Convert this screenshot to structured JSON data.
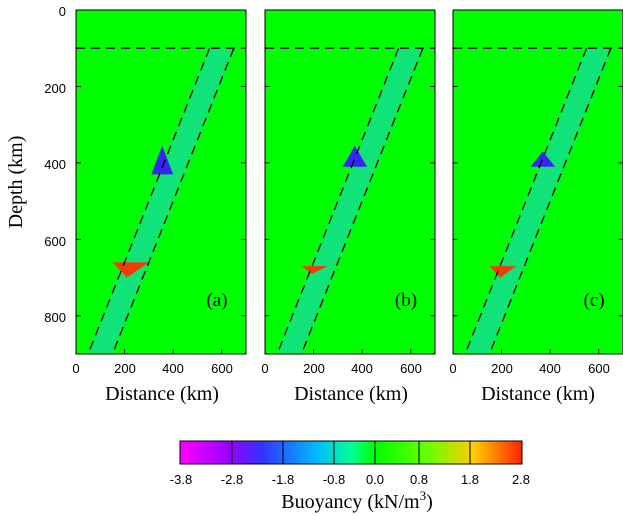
{
  "chart_data": [
    {
      "type": "heatmap",
      "panel_label": "(a)",
      "xlabel": "Distance (km)",
      "ylabel": "Depth (km)",
      "xlim": [
        0,
        700
      ],
      "ylim": [
        900,
        0
      ],
      "xticks": [
        "0",
        "200",
        "400",
        "600"
      ],
      "yticks": [
        "0",
        "200",
        "400",
        "600",
        "800"
      ],
      "background_value": 0.0,
      "reference_depth_line": 100,
      "slab_boundaries": [
        {
          "top": [
            550,
            100
          ],
          "bottom": [
            50,
            900
          ]
        },
        {
          "top": [
            650,
            100
          ],
          "bottom": [
            150,
            900
          ]
        }
      ],
      "slab_anomaly_value": -0.8,
      "anomalies": [
        {
          "feature": "negative buoyancy near 410 km",
          "value": -2.8,
          "distance_range": [
            310,
            400
          ],
          "depth_range": [
            355,
            430
          ]
        },
        {
          "feature": "positive buoyancy near 660 km",
          "value": 2.8,
          "distance_range": [
            150,
            300
          ],
          "depth_range": [
            660,
            700
          ]
        }
      ]
    },
    {
      "type": "heatmap",
      "panel_label": "(b)",
      "xlabel": "Distance (km)",
      "xlim": [
        0,
        700
      ],
      "ylim": [
        900,
        0
      ],
      "xticks": [
        "0",
        "200",
        "400",
        "600"
      ],
      "background_value": 0.0,
      "reference_depth_line": 100,
      "slab_boundaries": [
        {
          "top": [
            550,
            100
          ],
          "bottom": [
            50,
            900
          ]
        },
        {
          "top": [
            650,
            100
          ],
          "bottom": [
            150,
            900
          ]
        }
      ],
      "slab_anomaly_value": -0.8,
      "anomalies": [
        {
          "feature": "negative buoyancy near 410 km",
          "value": -2.8,
          "distance_range": [
            320,
            420
          ],
          "depth_range": [
            355,
            410
          ]
        },
        {
          "feature": "positive buoyancy near 660 km",
          "value": 2.8,
          "distance_range": [
            150,
            260
          ],
          "depth_range": [
            670,
            690
          ]
        }
      ]
    },
    {
      "type": "heatmap",
      "panel_label": "(c)",
      "xlabel": "Distance (km)",
      "xlim": [
        0,
        700
      ],
      "ylim": [
        900,
        0
      ],
      "xticks": [
        "0",
        "200",
        "400",
        "600"
      ],
      "background_value": 0.0,
      "reference_depth_line": 100,
      "slab_boundaries": [
        {
          "top": [
            550,
            100
          ],
          "bottom": [
            50,
            900
          ]
        },
        {
          "top": [
            650,
            100
          ],
          "bottom": [
            150,
            900
          ]
        }
      ],
      "slab_anomaly_value": -0.8,
      "anomalies": [
        {
          "feature": "negative buoyancy near 410 km",
          "value": -2.8,
          "distance_range": [
            320,
            420
          ],
          "depth_range": [
            370,
            410
          ]
        },
        {
          "feature": "positive buoyancy near 660 km",
          "value": 2.8,
          "distance_range": [
            150,
            260
          ],
          "depth_range": [
            670,
            700
          ]
        }
      ]
    }
  ],
  "colorbar": {
    "title_text": "Buoyancy (kN/m",
    "title_superscript": "3",
    "title_close": ")",
    "tick_labels": [
      "-3.8",
      "-2.8",
      "-1.8",
      "-0.8",
      "0.0",
      "0.8",
      "1.8",
      "2.8"
    ],
    "colors": [
      "#ff00ff",
      "#3333ff",
      "#00ccff",
      "#00ff00",
      "#66ff00",
      "#ffcc00",
      "#ff2200"
    ]
  }
}
